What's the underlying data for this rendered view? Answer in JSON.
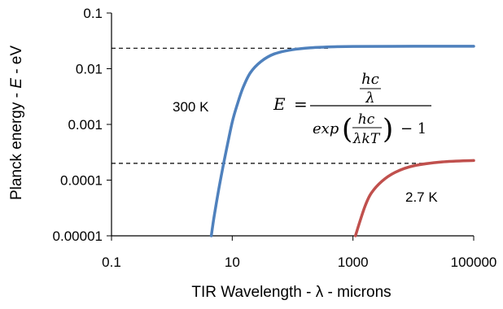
{
  "chart_data": {
    "type": "line",
    "title": "",
    "xlabel": "TIR Wavelength - λ - microns",
    "ylabel_parts": {
      "prefix": "Planck energy - ",
      "var": "E",
      "suffix": " - eV"
    },
    "x_scale": "log",
    "y_scale": "log",
    "xlim": [
      0.1,
      100000
    ],
    "ylim": [
      1e-05,
      0.1
    ],
    "x_ticks": [
      0.1,
      10,
      1000,
      100000
    ],
    "x_tick_labels": [
      "0.1",
      "10",
      "1000",
      "100000"
    ],
    "y_ticks": [
      1e-05,
      0.0001,
      0.001,
      0.01,
      0.1
    ],
    "y_tick_labels": [
      "0.00001",
      "0.0001",
      "0.001",
      "0.01",
      "0.1"
    ],
    "grid": false,
    "series": [
      {
        "label": "300 K",
        "color": "#4f81bd",
        "x": [
          4.5,
          5,
          6,
          7,
          8,
          10,
          12,
          15,
          20,
          30,
          50,
          100,
          200,
          500,
          1000,
          10000,
          100000
        ],
        "y": [
          1e-05,
          2.2e-05,
          7e-05,
          0.00017,
          0.00035,
          0.0011,
          0.0022,
          0.0045,
          0.0085,
          0.0135,
          0.0185,
          0.022,
          0.0238,
          0.0248,
          0.0251,
          0.0253,
          0.0253
        ]
      },
      {
        "label": "2.7 K",
        "color": "#c0504d",
        "x": [
          1100,
          1300,
          1600,
          2000,
          3000,
          5000,
          10000,
          30000,
          100000
        ],
        "y": [
          1e-05,
          1.8e-05,
          3.5e-05,
          5.8e-05,
          9.5e-05,
          0.000138,
          0.00018,
          0.000212,
          0.000225
        ]
      }
    ],
    "reference_lines": [
      {
        "y": 0.0233,
        "x_start": 0.1,
        "x_end": 400,
        "style": "dashed"
      },
      {
        "y": 0.0002,
        "x_start": 0.1,
        "x_end": 20000,
        "style": "dashed"
      }
    ],
    "annotations": [
      {
        "text": "300 K"
      },
      {
        "text": "2.7 K"
      }
    ],
    "equation": {
      "lhs": "E",
      "equals": "=",
      "num_top": "hc",
      "num_bottom": "λ",
      "exp_word": "exp",
      "inner_top": "hc",
      "inner_bottom": "λkT",
      "minus_one": "− 1"
    }
  }
}
